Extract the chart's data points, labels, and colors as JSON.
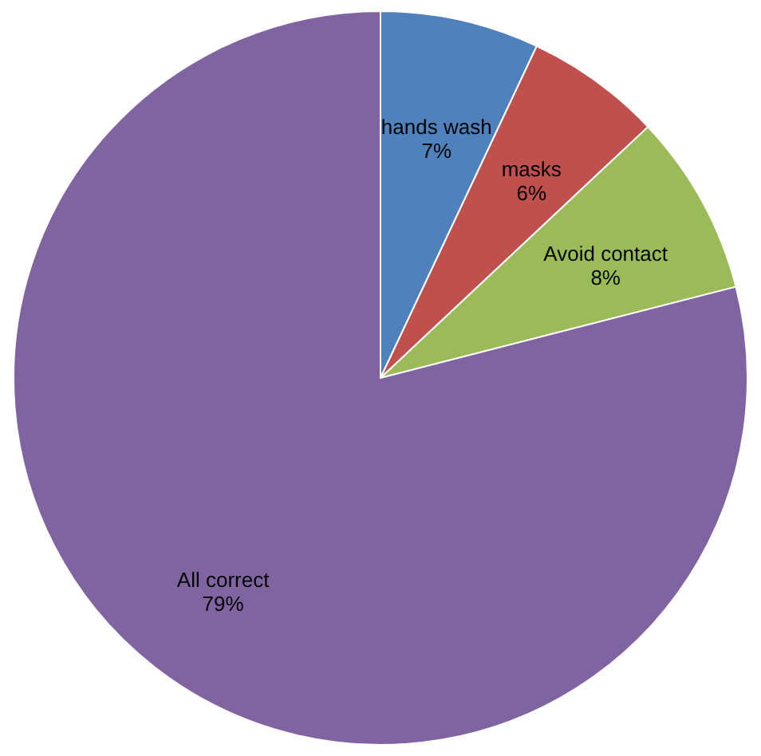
{
  "chart_data": {
    "type": "pie",
    "categories": [
      "hands wash",
      "masks",
      "Avoid  contact",
      "All correct"
    ],
    "values": [
      7,
      6,
      8,
      79
    ],
    "colors": [
      "#4f81bd",
      "#c0504d",
      "#9bbb59",
      "#8064a2"
    ],
    "value_labels": [
      "7%",
      "6%",
      "8%",
      "79%"
    ]
  }
}
